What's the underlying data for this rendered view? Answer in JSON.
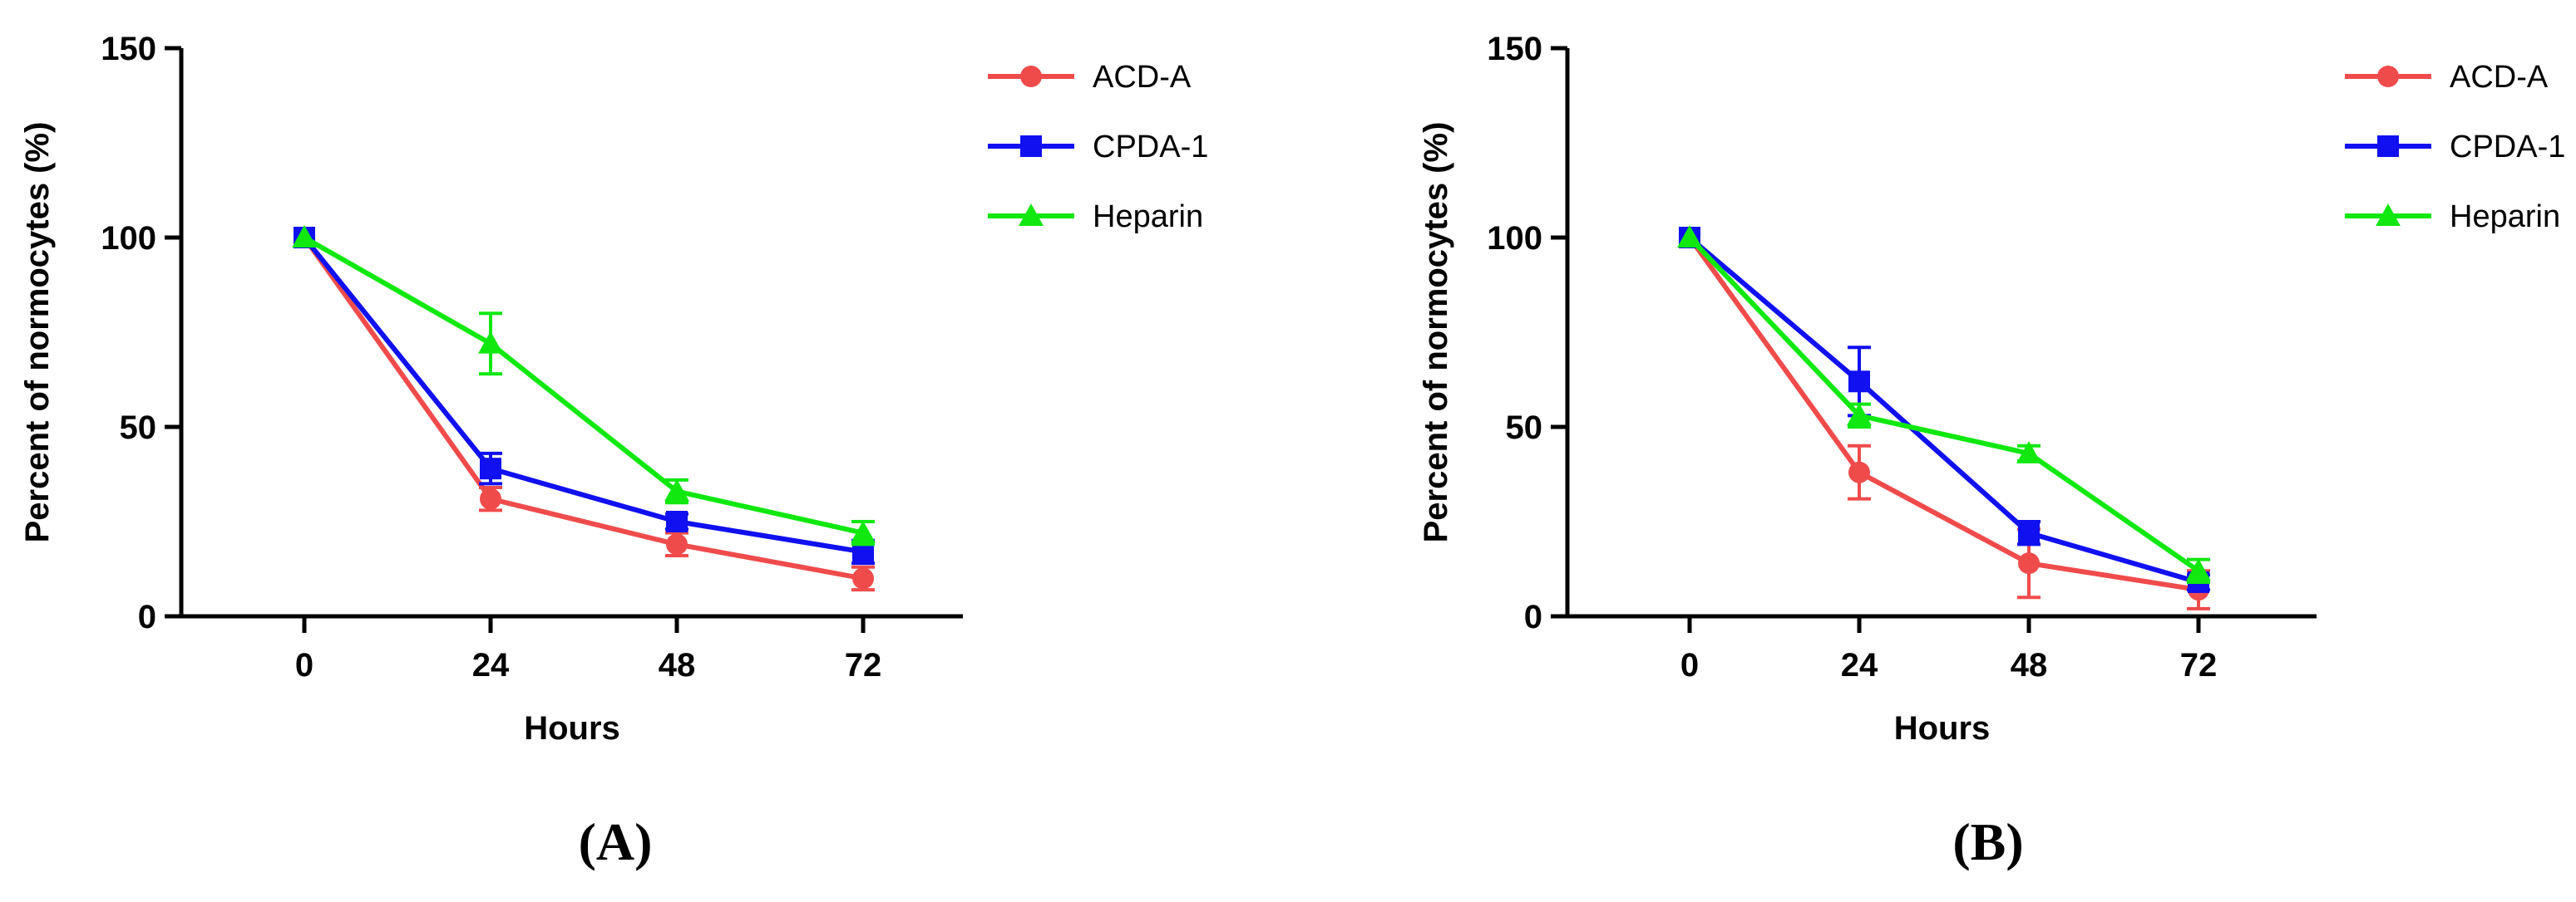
{
  "chart_data": [
    {
      "type": "line",
      "panel_label": "(A)",
      "xlabel": "Hours",
      "ylabel": "Percent of normocytes (%)",
      "categories": [
        "0",
        "24",
        "48",
        "72"
      ],
      "x": [
        0,
        24,
        48,
        72
      ],
      "ylim": [
        0,
        150
      ],
      "yticks": [
        0,
        50,
        100,
        150
      ],
      "grid": false,
      "legend": "top-right",
      "series": [
        {
          "name": "ACD-A",
          "marker": "circle",
          "color": "#F04B4B",
          "values": [
            100,
            31,
            19,
            10
          ],
          "errors": [
            0,
            3,
            3,
            3
          ]
        },
        {
          "name": "CPDA-1",
          "marker": "square",
          "color": "#1010F0",
          "values": [
            100,
            39,
            25,
            17
          ],
          "errors": [
            0,
            4,
            2,
            3
          ]
        },
        {
          "name": "Heparin",
          "marker": "triangle",
          "color": "#10E810",
          "values": [
            100,
            72,
            33,
            22
          ],
          "errors": [
            0,
            8,
            3,
            3
          ]
        }
      ]
    },
    {
      "type": "line",
      "panel_label": "(B)",
      "xlabel": "Hours",
      "ylabel": "Percent of normocytes (%)",
      "categories": [
        "0",
        "24",
        "48",
        "72"
      ],
      "x": [
        0,
        24,
        48,
        72
      ],
      "ylim": [
        0,
        150
      ],
      "yticks": [
        0,
        50,
        100,
        150
      ],
      "grid": false,
      "legend": "top-right",
      "series": [
        {
          "name": "ACD-A",
          "marker": "circle",
          "color": "#F04B4B",
          "values": [
            100,
            38,
            14,
            7
          ],
          "errors": [
            0,
            7,
            9,
            5
          ]
        },
        {
          "name": "CPDA-1",
          "marker": "square",
          "color": "#1010F0",
          "values": [
            100,
            62,
            22,
            9
          ],
          "errors": [
            0,
            9,
            3,
            2
          ]
        },
        {
          "name": "Heparin",
          "marker": "triangle",
          "color": "#10E810",
          "values": [
            100,
            53,
            43,
            12
          ],
          "errors": [
            0,
            3,
            2,
            3
          ]
        }
      ]
    }
  ]
}
